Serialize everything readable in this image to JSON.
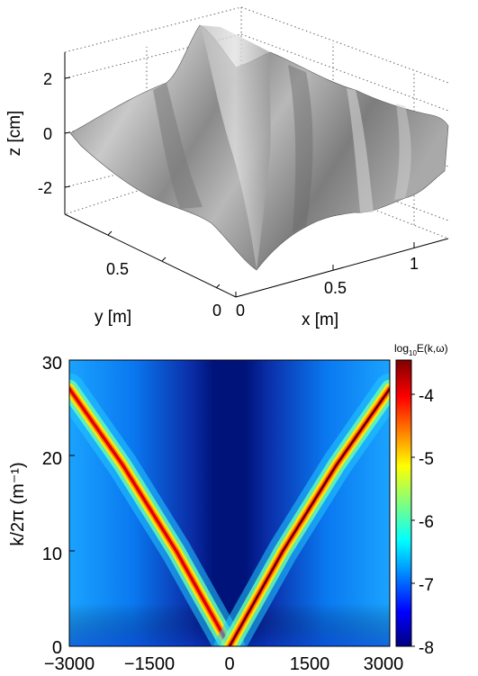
{
  "chart_data": [
    {
      "type": "surface3d",
      "axes": {
        "x": {
          "label": "x [m]",
          "ticks": [
            "0",
            "0.5",
            "1"
          ]
        },
        "y": {
          "label": "y [m]",
          "ticks": [
            "0",
            "0.5"
          ]
        },
        "z": {
          "label": "z [cm]",
          "ticks": [
            "2",
            "0",
            "-2"
          ]
        }
      },
      "zlim": [
        -3,
        3
      ],
      "colormap": "gray",
      "grid": true,
      "title": ""
    },
    {
      "type": "heatmap",
      "xlabel": "",
      "ylabel": "k/2π (m⁻¹)",
      "xticks": [
        "−3000",
        "−1500",
        "0",
        "1500",
        "3000"
      ],
      "yticks": [
        "0",
        "10",
        "20",
        "30"
      ],
      "xlim": [
        -3000,
        3000
      ],
      "ylim": [
        0,
        30
      ],
      "colorbar": {
        "label_prefix": "log",
        "label_sub": "10",
        "label_suffix": "E(k,ω)",
        "ticks": [
          "-4",
          "-5",
          "-6",
          "-7",
          "-8"
        ],
        "range": [
          -8,
          -3.4
        ],
        "colormap": "jet"
      },
      "ridge": {
        "description_values": [
          {
            "x": 0,
            "y": 0
          },
          {
            "x": 500,
            "y": 5
          },
          {
            "x": 1000,
            "y": 10
          },
          {
            "x": 1500,
            "y": 14.5
          },
          {
            "x": 2000,
            "y": 19
          },
          {
            "x": 2500,
            "y": 23
          },
          {
            "x": 3000,
            "y": 27
          }
        ]
      }
    }
  ]
}
